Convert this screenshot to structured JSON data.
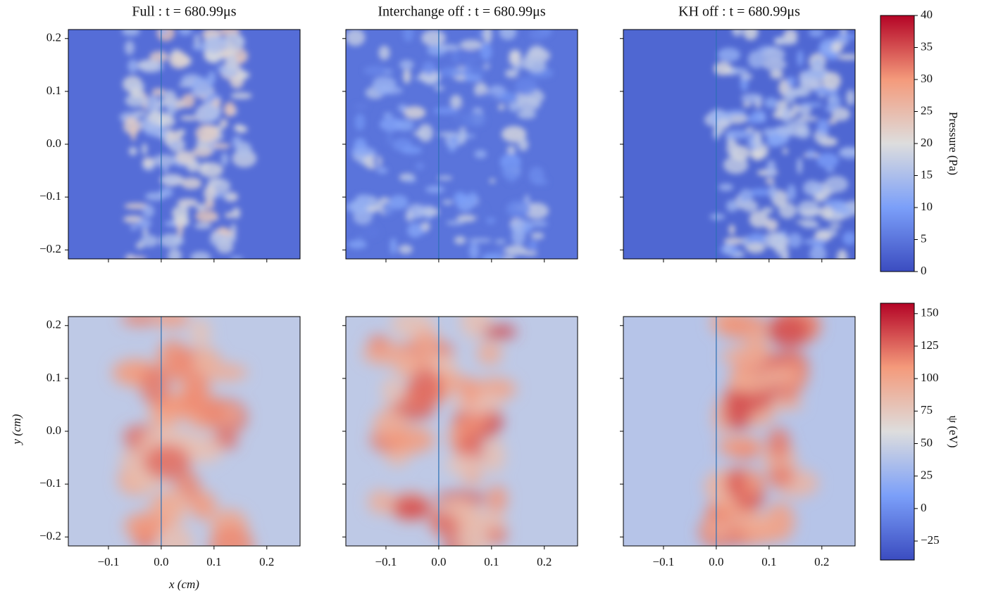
{
  "chart_data": {
    "type": "heatmap-grid",
    "titles": [
      "Full : t = 680.99μs",
      "Interchange off : t = 680.99μs",
      "KH off : t = 680.99μs"
    ],
    "xlabel": "x (cm)",
    "ylabel": "y (cm)",
    "xlim": [
      -0.176,
      0.263
    ],
    "ylim": [
      -0.217,
      0.217
    ],
    "xticks": [
      {
        "value": -0.1,
        "label": "−0.1"
      },
      {
        "value": 0,
        "label": "0.0"
      },
      0.1,
      0.2
    ],
    "yticks": [
      {
        "value": -0.2,
        "label": "−0.2"
      },
      {
        "value": -0.1,
        "label": "−0.1"
      },
      {
        "value": 0,
        "label": "0.0"
      },
      0.1,
      0.2
    ],
    "colormap": "coolwarm",
    "colorbars": [
      {
        "label": "Pressure (Pa)",
        "lim": [
          0,
          40
        ],
        "ticks": [
          0,
          5,
          10,
          15,
          20,
          25,
          30,
          35,
          40
        ]
      },
      {
        "label": "ψ (eV)",
        "lim": [
          -39.6,
          158
        ],
        "ticks": [
          {
            "value": -25,
            "label": "−25"
          },
          0,
          25,
          50,
          75,
          100,
          125,
          150
        ]
      }
    ]
  }
}
